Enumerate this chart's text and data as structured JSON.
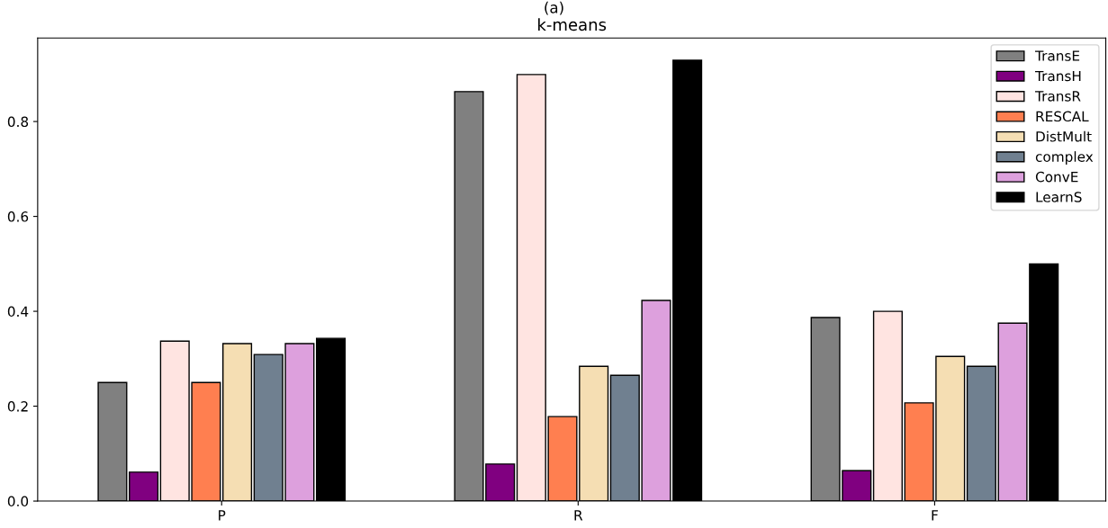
{
  "chart_data": {
    "type": "bar",
    "title": "k-means",
    "annotations": [
      "(a)"
    ],
    "categories": [
      "P",
      "R",
      "F"
    ],
    "series": [
      {
        "name": "TransE",
        "color": "#808080",
        "values": [
          0.25,
          0.863,
          0.387
        ]
      },
      {
        "name": "TransH",
        "color": "#800080",
        "values": [
          0.061,
          0.078,
          0.064
        ]
      },
      {
        "name": "TransR",
        "color": "#ffe4e1",
        "values": [
          0.337,
          0.899,
          0.4
        ]
      },
      {
        "name": "RESCAL",
        "color": "#ff7f50",
        "values": [
          0.25,
          0.178,
          0.207
        ]
      },
      {
        "name": "DistMult",
        "color": "#f5deb3",
        "values": [
          0.332,
          0.284,
          0.305
        ]
      },
      {
        "name": "complex",
        "color": "#708090",
        "values": [
          0.309,
          0.265,
          0.284
        ]
      },
      {
        "name": "ConvE",
        "color": "#dda0dd",
        "values": [
          0.332,
          0.423,
          0.375
        ]
      },
      {
        "name": "LearnS",
        "color": "#000000",
        "values": [
          0.343,
          0.929,
          0.5
        ]
      }
    ],
    "ylim": [
      0,
      0.976
    ],
    "yticks": [
      {
        "value": 0,
        "label": "0.0"
      },
      {
        "value": 0.2,
        "label": "0.2"
      },
      {
        "value": 0.4,
        "label": "0.4"
      },
      {
        "value": 0.6,
        "label": "0.6"
      },
      {
        "value": 0.8,
        "label": "0.8"
      }
    ],
    "grid": false,
    "legend": "top right"
  }
}
